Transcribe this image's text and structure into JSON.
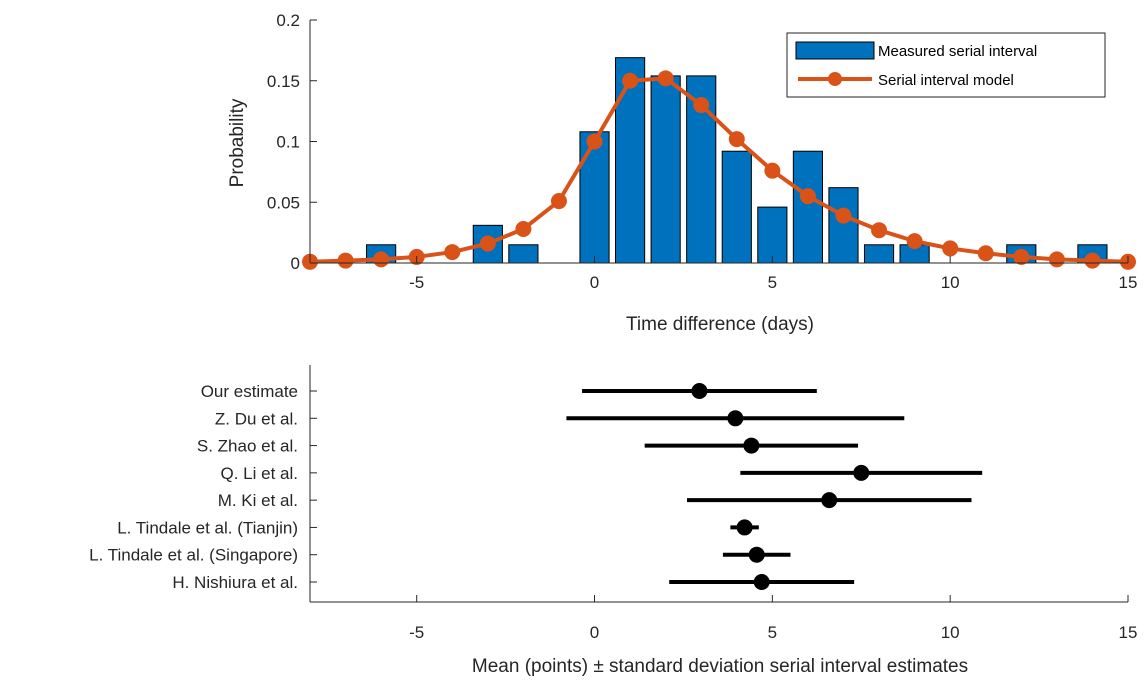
{
  "colors": {
    "bar_fill": "#0072BD",
    "bar_edge": "#000000",
    "model_line": "#D95319",
    "estimate_marker": "#000000",
    "axis": "#262626"
  },
  "chart_data": [
    {
      "type": "bar+line",
      "title": "",
      "xlabel": "Time difference (days)",
      "ylabel": "Probability",
      "xlim": [
        -8,
        15
      ],
      "ylim": [
        0,
        0.2
      ],
      "xticks": [
        -5,
        0,
        5,
        10,
        15
      ],
      "yticks": [
        0,
        0.05,
        0.1,
        0.15,
        0.2
      ],
      "ytick_labels": [
        "0",
        "0.05",
        "0.1",
        "0.15",
        "0.2"
      ],
      "legend_position": "top-right",
      "series": [
        {
          "name": "Measured serial interval",
          "kind": "bar",
          "x": [
            -6,
            -3,
            -2,
            0,
            1,
            2,
            3,
            4,
            5,
            6,
            7,
            8,
            9,
            12,
            14
          ],
          "values": [
            0.015,
            0.031,
            0.015,
            0.108,
            0.169,
            0.154,
            0.154,
            0.092,
            0.046,
            0.092,
            0.062,
            0.015,
            0.015,
            0.015,
            0.015
          ]
        },
        {
          "name": "Serial interval model",
          "kind": "line",
          "x": [
            -8,
            -7,
            -6,
            -5,
            -4,
            -3,
            -2,
            -1,
            0,
            1,
            2,
            3,
            4,
            5,
            6,
            7,
            8,
            9,
            10,
            11,
            12,
            13,
            14,
            15
          ],
          "values": [
            0.001,
            0.002,
            0.003,
            0.005,
            0.009,
            0.016,
            0.028,
            0.051,
            0.1,
            0.15,
            0.152,
            0.13,
            0.102,
            0.076,
            0.055,
            0.039,
            0.027,
            0.018,
            0.012,
            0.008,
            0.005,
            0.003,
            0.002,
            0.001
          ]
        }
      ]
    },
    {
      "type": "errorbar",
      "title": "",
      "xlabel": "Mean (points) ± standard deviation serial interval estimates",
      "ylabel": "",
      "xlim": [
        -8,
        15
      ],
      "xticks": [
        -5,
        0,
        5,
        10,
        15
      ],
      "categories": [
        "Our estimate",
        "Z. Du et al.",
        "S. Zhao et al.",
        "Q. Li et al.",
        "M. Ki et al.",
        "L. Tindale et al. (Tianjin)",
        "L. Tindale et al. (Singapore)",
        "H. Nishiura et al."
      ],
      "mean": [
        2.95,
        3.96,
        4.41,
        7.5,
        6.6,
        4.22,
        4.56,
        4.7
      ],
      "sd": [
        3.3,
        4.75,
        3.0,
        3.4,
        4.0,
        0.4,
        0.95,
        2.6
      ]
    }
  ]
}
